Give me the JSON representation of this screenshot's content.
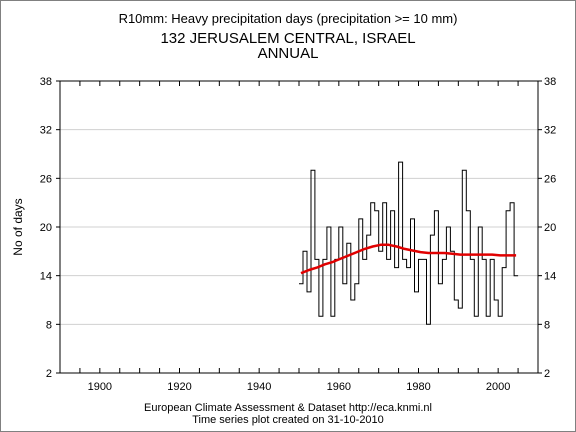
{
  "header": {
    "line1": "R10mm: Heavy precipitation days (precipitation >= 10 mm)",
    "line2": "132 JERUSALEM CENTRAL, ISRAEL",
    "line3": "ANNUAL"
  },
  "footer": {
    "line1": "European Climate Assessment & Dataset  http://eca.knmi.nl",
    "line2": "Time series plot created on 31-10-2010"
  },
  "colors": {
    "bars": "#000000",
    "trend": "#e00000",
    "grid": "#d0d0d0"
  },
  "chart_data": {
    "type": "line",
    "ylabel": "No of days",
    "xlim": [
      1890,
      2010
    ],
    "ylim": [
      2,
      38
    ],
    "xticks": [
      1900,
      1920,
      1940,
      1960,
      1980,
      2000
    ],
    "yticks": [
      2,
      8,
      14,
      20,
      26,
      32,
      38
    ],
    "grid": true,
    "series": [
      {
        "style": "step",
        "x": [
          1950,
          1951,
          1952,
          1953,
          1954,
          1955,
          1956,
          1957,
          1958,
          1959,
          1960,
          1961,
          1962,
          1963,
          1964,
          1965,
          1966,
          1967,
          1968,
          1969,
          1970,
          1971,
          1972,
          1973,
          1974,
          1975,
          1976,
          1977,
          1978,
          1979,
          1980,
          1981,
          1982,
          1983,
          1984,
          1985,
          1986,
          1987,
          1988,
          1989,
          1990,
          1991,
          1992,
          1993,
          1994,
          1995,
          1996,
          1997,
          1998,
          1999,
          2000,
          2001,
          2002,
          2003,
          2004
        ],
        "values": [
          13,
          17,
          12,
          27,
          16,
          9,
          16,
          20,
          9,
          16,
          20,
          13,
          18,
          11,
          13,
          21,
          16,
          19,
          23,
          22,
          17,
          23,
          16,
          22,
          15,
          28,
          16,
          15,
          21,
          12,
          16,
          16,
          8,
          19,
          22,
          13,
          16,
          20,
          17,
          11,
          10,
          27,
          22,
          16,
          9,
          20,
          16,
          9,
          16,
          11,
          9,
          15,
          22,
          23,
          14
        ]
      },
      {
        "style": "smooth",
        "x": [
          1950,
          1952,
          1954,
          1956,
          1958,
          1960,
          1962,
          1964,
          1966,
          1968,
          1970,
          1972,
          1974,
          1976,
          1978,
          1980,
          1982,
          1984,
          1986,
          1988,
          1990,
          1992,
          1994,
          1996,
          1998,
          2000,
          2002,
          2004
        ],
        "values": [
          14.3,
          14.7,
          15.0,
          15.4,
          15.7,
          16.1,
          16.5,
          16.9,
          17.3,
          17.6,
          17.8,
          17.8,
          17.6,
          17.3,
          17.1,
          16.9,
          16.8,
          16.8,
          16.8,
          16.7,
          16.6,
          16.6,
          16.6,
          16.6,
          16.6,
          16.5,
          16.5,
          16.5
        ]
      }
    ]
  }
}
